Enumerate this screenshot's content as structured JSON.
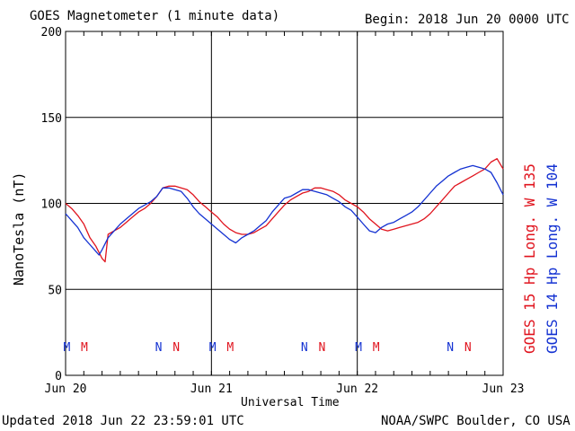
{
  "header": {
    "title": "GOES Magnetometer (1 minute data)",
    "begin": "Begin:  2018 Jun 20 0000 UTC"
  },
  "footer": {
    "updated": "Updated 2018 Jun 22 23:59:01 UTC",
    "source": "NOAA/SWPC Boulder, CO USA"
  },
  "colors": {
    "goes15": "#e0141e",
    "goes14": "#1432d2",
    "grid": "#000000"
  },
  "chart_data": {
    "type": "line",
    "title": "GOES Magnetometer (1 minute data)",
    "xlabel": "Universal Time",
    "ylabel": "NanoTesla (nT)",
    "ylim": [
      0,
      200
    ],
    "xlim": [
      0,
      72
    ],
    "x_units": "hours since 2018 Jun 20 0000 UTC",
    "yticks": [
      0,
      50,
      100,
      150,
      200
    ],
    "xticks": [
      {
        "x": 0,
        "label": "Jun 20"
      },
      {
        "x": 24,
        "label": "Jun 21"
      },
      {
        "x": 48,
        "label": "Jun 22"
      },
      {
        "x": 72,
        "label": "Jun 23"
      }
    ],
    "grid": true,
    "legend_position": "right, rotated vertical",
    "series": [
      {
        "name": "GOES 15 Hp  Long. W 135",
        "color": "#e0141e",
        "x": [
          0,
          1,
          2,
          3,
          4,
          5,
          6,
          6.5,
          7,
          8,
          9,
          10,
          11,
          12,
          13,
          14,
          15,
          16,
          17,
          18,
          19,
          20,
          21,
          22,
          23,
          24,
          25,
          26,
          27,
          28,
          29,
          30,
          31,
          32,
          33,
          34,
          35,
          36,
          37,
          38,
          39,
          40,
          41,
          42,
          43,
          44,
          45,
          46,
          47,
          48,
          49,
          50,
          51,
          52,
          53,
          54,
          55,
          56,
          57,
          58,
          59,
          60,
          61,
          62,
          63,
          64,
          65,
          66,
          67,
          68,
          69,
          70,
          71,
          72
        ],
        "values": [
          100,
          97,
          93,
          88,
          80,
          75,
          68,
          66,
          82,
          84,
          86,
          89,
          92,
          95,
          97,
          100,
          104,
          109,
          110,
          110,
          109,
          108,
          105,
          101,
          98,
          95,
          92,
          88,
          85,
          83,
          82,
          82,
          83,
          85,
          87,
          91,
          95,
          99,
          102,
          104,
          106,
          107,
          109,
          109,
          108,
          107,
          105,
          102,
          100,
          98,
          95,
          91,
          88,
          85,
          84,
          85,
          86,
          87,
          88,
          89,
          91,
          94,
          98,
          102,
          106,
          110,
          112,
          114,
          116,
          118,
          120,
          124,
          126,
          120
        ],
        "notes": {
          "M": 3.1,
          "N": 18.2
        }
      },
      {
        "name": "GOES 14 Hp  Long. W 104",
        "color": "#1432d2",
        "x": [
          0,
          1,
          2,
          3,
          4,
          5,
          5.5,
          6,
          7,
          8,
          9,
          10,
          11,
          12,
          13,
          14,
          15,
          16,
          17,
          18,
          19,
          20,
          21,
          22,
          23,
          24,
          25,
          26,
          27,
          28,
          29,
          30,
          31,
          32,
          33,
          34,
          35,
          36,
          37,
          38,
          39,
          40,
          41,
          42,
          43,
          44,
          45,
          46,
          47,
          48,
          49,
          50,
          51,
          52,
          53,
          54,
          55,
          56,
          57,
          58,
          59,
          60,
          61,
          62,
          63,
          64,
          65,
          66,
          67,
          68,
          69,
          70,
          71,
          72
        ],
        "values": [
          94,
          90,
          86,
          80,
          76,
          72,
          70,
          73,
          80,
          84,
          88,
          91,
          94,
          97,
          99,
          101,
          104,
          109,
          109,
          108,
          107,
          103,
          98,
          94,
          91,
          88,
          85,
          82,
          79,
          77,
          80,
          82,
          84,
          87,
          90,
          95,
          99,
          103,
          104,
          106,
          108,
          108,
          107,
          106,
          105,
          103,
          101,
          98,
          96,
          92,
          88,
          84,
          83,
          86,
          88,
          89,
          91,
          93,
          95,
          98,
          102,
          106,
          110,
          113,
          116,
          118,
          120,
          121,
          122,
          121,
          120,
          118,
          112,
          105
        ],
        "notes": {
          "M": 0.2,
          "N": 15.3
        }
      }
    ]
  }
}
